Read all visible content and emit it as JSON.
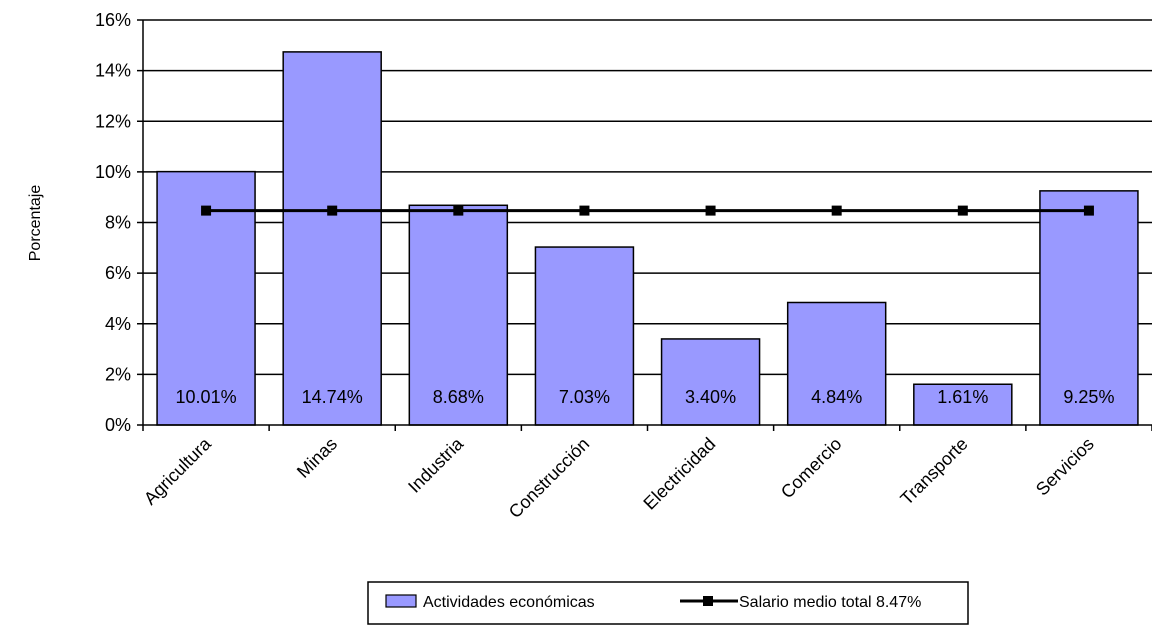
{
  "chart_data": {
    "type": "bar",
    "title": "",
    "xlabel": "",
    "ylabel": "Porcentaje",
    "ylim": [
      0,
      16
    ],
    "yticks": [
      0,
      2,
      4,
      6,
      8,
      10,
      12,
      14,
      16
    ],
    "ytick_labels": [
      "0%",
      "2%",
      "4%",
      "6%",
      "8%",
      "10%",
      "12%",
      "14%",
      "16%"
    ],
    "categories": [
      "Agricultura",
      "Minas",
      "Industria",
      "Construcción",
      "Electricidad",
      "Comercio",
      "Transporte",
      "Servicios"
    ],
    "series": [
      {
        "name": "Actividades económicas",
        "type": "bar",
        "values": [
          10.01,
          14.74,
          8.68,
          7.03,
          3.4,
          4.84,
          1.61,
          9.25
        ],
        "data_labels": [
          "10.01%",
          "14.74%",
          "8.68%",
          "7.03%",
          "3.40%",
          "4.84%",
          "1.61%",
          "9.25%"
        ],
        "color": "#9999ff"
      },
      {
        "name": "Salario medio total 8.47%",
        "type": "line",
        "values": [
          8.47,
          8.47,
          8.47,
          8.47,
          8.47,
          8.47,
          8.47,
          8.47
        ],
        "color": "#000000"
      }
    ],
    "grid": true,
    "legend": "bottom"
  }
}
